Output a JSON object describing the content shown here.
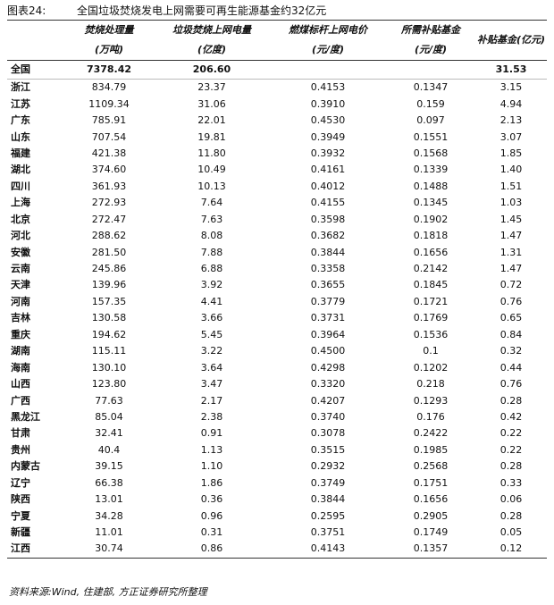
{
  "header": {
    "label": "图表24:",
    "title": "全国垃圾焚烧发电上网需要可再生能源基金约32亿元"
  },
  "table": {
    "columns": [
      {
        "name": "焚烧处理量",
        "unit": "(万吨)"
      },
      {
        "name": "垃圾焚烧上网电量",
        "unit": "(亿度)"
      },
      {
        "name": "燃煤标杆上网电价",
        "unit": "(元/度)"
      },
      {
        "name": "所需补贴基金",
        "unit": "(元/度)"
      },
      {
        "name": "补贴基金(亿元)"
      }
    ],
    "rows": [
      [
        "全国",
        "7378.42",
        "206.60",
        null,
        null,
        "31.53"
      ],
      [
        "浙江",
        "834.79",
        "23.37",
        "0.4153",
        "0.1347",
        "3.15"
      ],
      [
        "江苏",
        "1109.34",
        "31.06",
        "0.3910",
        "0.159",
        "4.94"
      ],
      [
        "广东",
        "785.91",
        "22.01",
        "0.4530",
        "0.097",
        "2.13"
      ],
      [
        "山东",
        "707.54",
        "19.81",
        "0.3949",
        "0.1551",
        "3.07"
      ],
      [
        "福建",
        "421.38",
        "11.80",
        "0.3932",
        "0.1568",
        "1.85"
      ],
      [
        "湖北",
        "374.60",
        "10.49",
        "0.4161",
        "0.1339",
        "1.40"
      ],
      [
        "四川",
        "361.93",
        "10.13",
        "0.4012",
        "0.1488",
        "1.51"
      ],
      [
        "上海",
        "272.93",
        "7.64",
        "0.4155",
        "0.1345",
        "1.03"
      ],
      [
        "北京",
        "272.47",
        "7.63",
        "0.3598",
        "0.1902",
        "1.45"
      ],
      [
        "河北",
        "288.62",
        "8.08",
        "0.3682",
        "0.1818",
        "1.47"
      ],
      [
        "安徽",
        "281.50",
        "7.88",
        "0.3844",
        "0.1656",
        "1.31"
      ],
      [
        "云南",
        "245.86",
        "6.88",
        "0.3358",
        "0.2142",
        "1.47"
      ],
      [
        "天津",
        "139.96",
        "3.92",
        "0.3655",
        "0.1845",
        "0.72"
      ],
      [
        "河南",
        "157.35",
        "4.41",
        "0.3779",
        "0.1721",
        "0.76"
      ],
      [
        "吉林",
        "130.58",
        "3.66",
        "0.3731",
        "0.1769",
        "0.65"
      ],
      [
        "重庆",
        "194.62",
        "5.45",
        "0.3964",
        "0.1536",
        "0.84"
      ],
      [
        "湖南",
        "115.11",
        "3.22",
        "0.4500",
        "0.1",
        "0.32"
      ],
      [
        "海南",
        "130.10",
        "3.64",
        "0.4298",
        "0.1202",
        "0.44"
      ],
      [
        "山西",
        "123.80",
        "3.47",
        "0.3320",
        "0.218",
        "0.76"
      ],
      [
        "广西",
        "77.63",
        "2.17",
        "0.4207",
        "0.1293",
        "0.28"
      ],
      [
        "黑龙江",
        "85.04",
        "2.38",
        "0.3740",
        "0.176",
        "0.42"
      ],
      [
        "甘肃",
        "32.41",
        "0.91",
        "0.3078",
        "0.2422",
        "0.22"
      ],
      [
        "贵州",
        "40.4",
        "1.13",
        "0.3515",
        "0.1985",
        "0.22"
      ],
      [
        "内蒙古",
        "39.15",
        "1.10",
        "0.2932",
        "0.2568",
        "0.28"
      ],
      [
        "辽宁",
        "66.38",
        "1.86",
        "0.3749",
        "0.1751",
        "0.33"
      ],
      [
        "陕西",
        "13.01",
        "0.36",
        "0.3844",
        "0.1656",
        "0.06"
      ],
      [
        "宁夏",
        "34.28",
        "0.96",
        "0.2595",
        "0.2905",
        "0.28"
      ],
      [
        "新疆",
        "11.01",
        "0.31",
        "0.3751",
        "0.1749",
        "0.05"
      ],
      [
        "江西",
        "30.74",
        "0.86",
        "0.4143",
        "0.1357",
        "0.12"
      ]
    ]
  },
  "footer": {
    "source": "资料来源:Wind, 住建部, 方正证券研究所整理"
  }
}
